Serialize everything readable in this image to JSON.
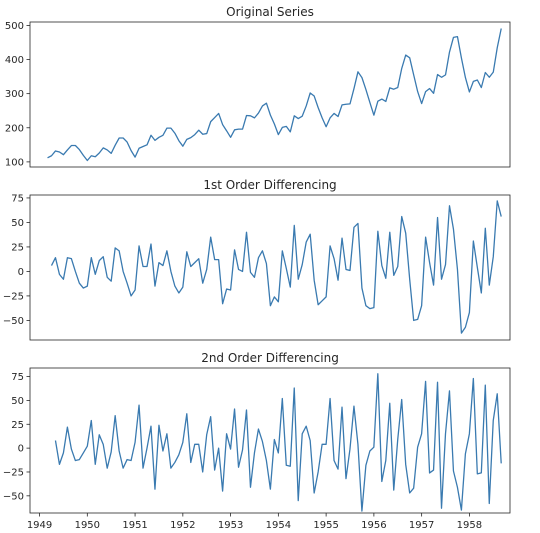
{
  "figure": {
    "line_color": "#3a7ab0"
  },
  "chart_data": [
    {
      "type": "line",
      "title": "Original Series",
      "xlabel": "",
      "ylabel": "",
      "xlim": [
        1948.8,
        1958.85
      ],
      "ylim": [
        85,
        510
      ],
      "yticks": [
        100,
        200,
        300,
        400,
        500
      ],
      "yticklabels": [
        "100",
        "200",
        "300",
        "400",
        "500"
      ],
      "xticks": [],
      "xticklabels": [],
      "x_start": 1949.167,
      "x_step": 0.08333,
      "grid": false,
      "series": [
        {
          "values": [
            112,
            118,
            132,
            129,
            121,
            135,
            148,
            148,
            136,
            119,
            104,
            118,
            115,
            126,
            141,
            135,
            125,
            149,
            170,
            170,
            158,
            133,
            114,
            140,
            145,
            150,
            178,
            163,
            172,
            178,
            199,
            199,
            184,
            162,
            146,
            166,
            171,
            180,
            193,
            181,
            183,
            218,
            230,
            242,
            209,
            191,
            172,
            194,
            196,
            196,
            236,
            235,
            229,
            243,
            264,
            272,
            237,
            211,
            180,
            201,
            204,
            188,
            235,
            227,
            234,
            264,
            302,
            293,
            259,
            229,
            203,
            229,
            242,
            233,
            267,
            269,
            270,
            315,
            364,
            347,
            312,
            274,
            237,
            278,
            284,
            277,
            317,
            313,
            318,
            374,
            413,
            405,
            355,
            306,
            271,
            306,
            315,
            301,
            356,
            348,
            355,
            422,
            465,
            467,
            404,
            347,
            305,
            336,
            340,
            318,
            362,
            348,
            363,
            435,
            491
          ]
        }
      ]
    },
    {
      "type": "line",
      "title": "1st Order Differencing",
      "xlabel": "",
      "ylabel": "",
      "xlim": [
        1948.8,
        1958.85
      ],
      "ylim": [
        -70,
        78
      ],
      "yticks": [
        -50,
        -25,
        0,
        25,
        50,
        75
      ],
      "yticklabels": [
        "−50",
        "−25",
        "0",
        "25",
        "50",
        "75"
      ],
      "xticks": [],
      "xticklabels": [],
      "x_start": 1949.25,
      "x_step": 0.08333,
      "grid": false,
      "series": [
        {
          "values": [
            6,
            14,
            -3,
            -8,
            14,
            13,
            0,
            -12,
            -17,
            -15,
            14,
            -3,
            11,
            15,
            -6,
            -10,
            24,
            21,
            0,
            -12,
            -25,
            -19,
            26,
            5,
            5,
            28,
            -15,
            9,
            6,
            21,
            0,
            -15,
            -22,
            -16,
            20,
            5,
            9,
            13,
            -12,
            2,
            35,
            12,
            12,
            -33,
            -18,
            -19,
            22,
            2,
            0,
            40,
            -1,
            -6,
            14,
            21,
            8,
            -35,
            -26,
            -31,
            21,
            3,
            -16,
            47,
            -8,
            7,
            30,
            38,
            -9,
            -34,
            -30,
            -26,
            26,
            13,
            -9,
            34,
            2,
            1,
            45,
            49,
            -17,
            -35,
            -38,
            -37,
            41,
            6,
            -7,
            40,
            -4,
            5,
            56,
            39,
            -8,
            -50,
            -49,
            -35,
            35,
            9,
            -14,
            55,
            -8,
            7,
            67,
            43,
            2,
            -63,
            -57,
            -42,
            31,
            4,
            -22,
            44,
            -14,
            15,
            72,
            56
          ]
        }
      ]
    },
    {
      "type": "line",
      "title": "2nd Order Differencing",
      "xlabel": "",
      "ylabel": "",
      "xlim": [
        1948.8,
        1958.85
      ],
      "ylim": [
        -68,
        84
      ],
      "yticks": [
        -50,
        -25,
        0,
        25,
        50,
        75
      ],
      "yticklabels": [
        "−50",
        "−25",
        "0",
        "25",
        "50",
        "75"
      ],
      "xticks": [
        1949,
        1950,
        1951,
        1952,
        1953,
        1954,
        1955,
        1956,
        1957,
        1958
      ],
      "xticklabels": [
        "1949",
        "1950",
        "1951",
        "1952",
        "1953",
        "1954",
        "1955",
        "1956",
        "1957",
        "1958"
      ],
      "x_start": 1949.333,
      "x_step": 0.08333,
      "grid": false,
      "series": [
        {
          "values": [
            8,
            -17,
            -5,
            22,
            -1,
            -13,
            -12,
            -5,
            2,
            29,
            -17,
            14,
            4,
            -21,
            -4,
            34,
            -3,
            -21,
            -12,
            -13,
            6,
            45,
            -21,
            0,
            23,
            -43,
            24,
            -3,
            15,
            -21,
            -15,
            -7,
            6,
            36,
            -15,
            4,
            4,
            -25,
            14,
            33,
            -23,
            0,
            -45,
            15,
            -1,
            41,
            -20,
            -2,
            40,
            -41,
            -5,
            20,
            7,
            -13,
            -43,
            9,
            -5,
            52,
            -18,
            -19,
            63,
            -55,
            15,
            23,
            8,
            -47,
            -25,
            4,
            4,
            52,
            -13,
            -22,
            43,
            -32,
            -1,
            44,
            4,
            -66,
            -18,
            -3,
            1,
            78,
            -35,
            -13,
            47,
            -44,
            9,
            51,
            -17,
            -47,
            -42,
            1,
            15,
            70,
            -26,
            -23,
            69,
            -63,
            15,
            60,
            -24,
            -41,
            -65,
            -6,
            15,
            73,
            -27,
            -26,
            66,
            -58,
            29,
            57,
            -16
          ]
        }
      ]
    }
  ]
}
